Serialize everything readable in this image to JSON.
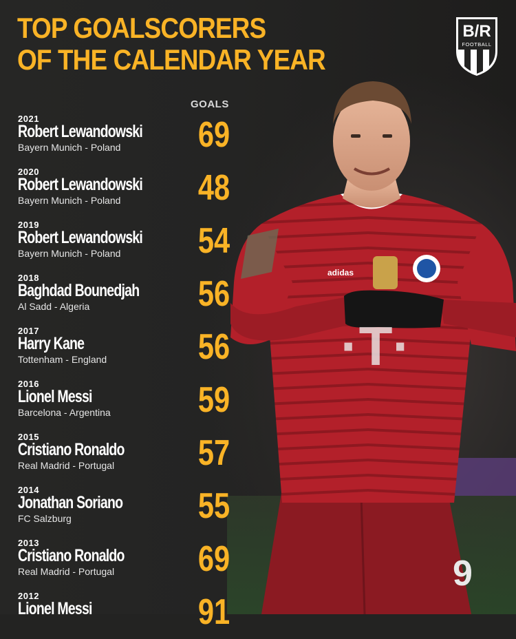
{
  "header": {
    "title_line1": "TOP GOALSCORERS",
    "title_line2": "OF THE CALENDAR YEAR",
    "column_label": "GOALS"
  },
  "brand": {
    "logo_text": "B/R",
    "logo_sub": "FOOTBALL"
  },
  "colors": {
    "accent": "#f9b326",
    "background": "#232322",
    "jersey": "#b3202a"
  },
  "rows": [
    {
      "year": "2021",
      "name": "Robert Lewandowski",
      "club": "Bayern Munich - Poland",
      "goals": "69"
    },
    {
      "year": "2020",
      "name": "Robert Lewandowski",
      "club": "Bayern Munich - Poland",
      "goals": "48"
    },
    {
      "year": "2019",
      "name": "Robert Lewandowski",
      "club": "Bayern Munich - Poland",
      "goals": "54"
    },
    {
      "year": "2018",
      "name": "Baghdad Bounedjah",
      "club": "Al Sadd - Algeria",
      "goals": "56"
    },
    {
      "year": "2017",
      "name": "Harry Kane",
      "club": "Tottenham - England",
      "goals": "56"
    },
    {
      "year": "2016",
      "name": "Lionel Messi",
      "club": "Barcelona - Argentina",
      "goals": "59"
    },
    {
      "year": "2015",
      "name": "Cristiano Ronaldo",
      "club": "Real Madrid - Portugal",
      "goals": "57"
    },
    {
      "year": "2014",
      "name": "Jonathan Soriano",
      "club": "FC Salzburg",
      "goals": "55"
    },
    {
      "year": "2013",
      "name": "Cristiano Ronaldo",
      "club": "Real Madrid - Portugal",
      "goals": "69"
    },
    {
      "year": "2012",
      "name": "Lionel Messi",
      "club": "",
      "goals": "91"
    }
  ]
}
